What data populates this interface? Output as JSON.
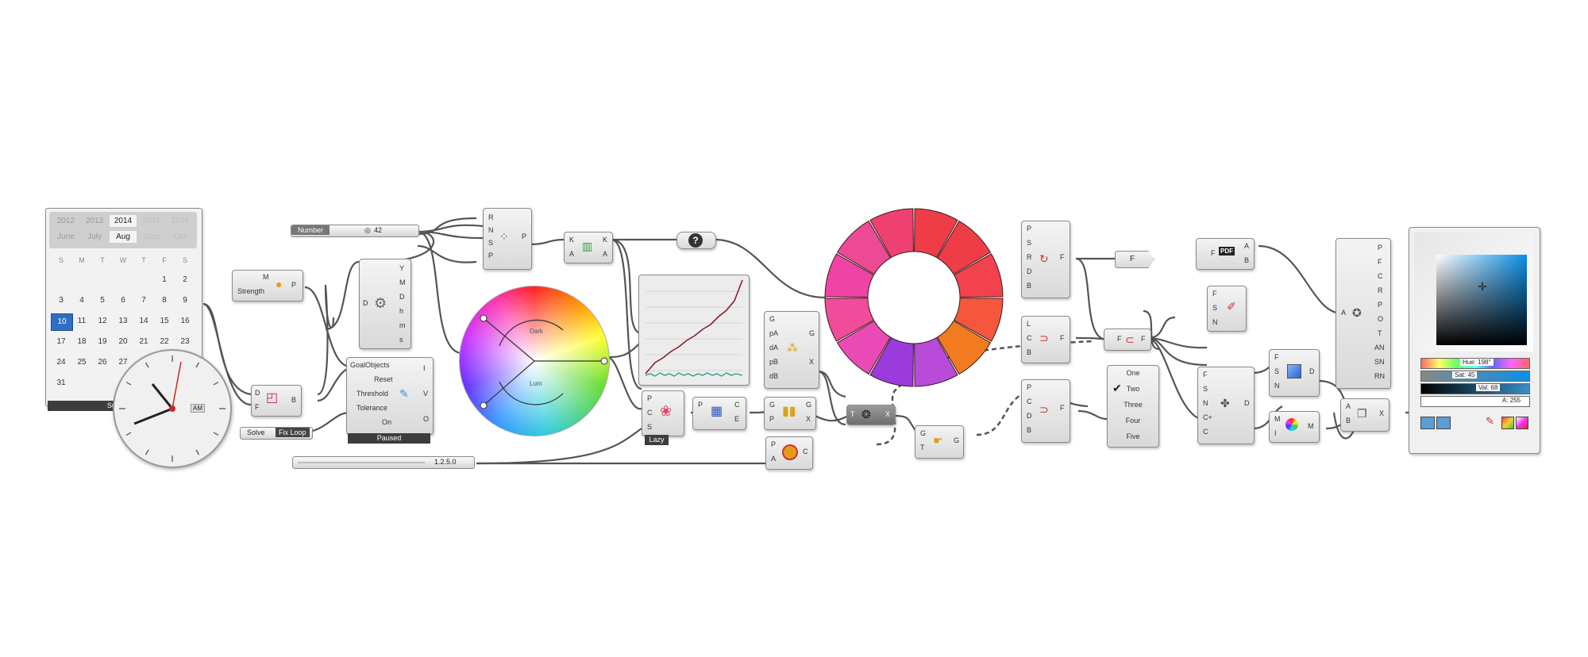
{
  "calendar": {
    "years": [
      "2012",
      "2013",
      "2014",
      "2015",
      "2016"
    ],
    "months": [
      "June",
      "July",
      "Aug",
      "Sept",
      "Oct"
    ],
    "weekdays": [
      "S",
      "M",
      "T",
      "W",
      "T",
      "F",
      "S"
    ],
    "rows": [
      [
        "",
        "",
        "",
        "",
        "",
        "1",
        "2"
      ],
      [
        "3",
        "4",
        "5",
        "6",
        "7",
        "8",
        "9"
      ],
      [
        "10",
        "11",
        "12",
        "13",
        "14",
        "15",
        "16"
      ],
      [
        "17",
        "18",
        "19",
        "20",
        "21",
        "22",
        "23"
      ],
      [
        "24",
        "25",
        "26",
        "27",
        "28",
        "29",
        "30"
      ],
      [
        "31",
        "",
        "",
        "",
        "",
        "",
        ""
      ]
    ],
    "selected_day": "10",
    "footer": "Sunday, A"
  },
  "clock": {
    "ampm": "AM"
  },
  "nodes": {
    "strength": {
      "in1": "M",
      "in2": "Strength",
      "out": "P"
    },
    "small_d": {
      "in1": "D",
      "in2": "F",
      "out": "B"
    },
    "deconstruct": {
      "in": "D",
      "outs": [
        "Y",
        "M",
        "D",
        "h",
        "m",
        "s"
      ]
    },
    "goal": {
      "title": "GoalObjects",
      "inputs": [
        "Reset",
        "Threshold",
        "Tolerance",
        "On"
      ],
      "outs": [
        "I",
        "V",
        "O"
      ],
      "status": "Paused"
    },
    "solve": {
      "label": "Solve",
      "value": "Fix Loop"
    },
    "number": {
      "label": "Number",
      "value": "42"
    },
    "rnsp": {
      "ins": [
        "R",
        "N",
        "S",
        "P"
      ],
      "out": "P"
    },
    "ka": {
      "in1": "K",
      "in2": "A",
      "out1": "K",
      "out2": "A"
    },
    "question": {
      "glyph": "?"
    },
    "wheel": {
      "label1": "Dark",
      "label2": "Lum"
    },
    "cgs": {
      "ins": [
        "P",
        "C",
        "S"
      ],
      "status": "Lazy"
    },
    "gpa": {
      "ins": [
        "G",
        "pA",
        "dA",
        "pB",
        "dB"
      ],
      "outs": [
        "G",
        "X"
      ]
    },
    "pce": {
      "in": "P",
      "outs": [
        "C",
        "E"
      ]
    },
    "gpgx": {
      "ins": [
        "G",
        "P"
      ],
      "outs": [
        "G",
        "X"
      ]
    },
    "pac": {
      "ins": [
        "P",
        "A"
      ],
      "out": "C"
    },
    "tx": {
      "in": "T",
      "out": "X"
    },
    "gtg": {
      "ins": [
        "G",
        "T"
      ],
      "out": "G"
    },
    "slider": {
      "value": "1.2.5.0"
    },
    "psrdb": {
      "ins": [
        "P",
        "S",
        "R",
        "D",
        "B"
      ],
      "out": "F"
    },
    "lcb": {
      "ins": [
        "L",
        "C",
        "B"
      ],
      "out": "F"
    },
    "pcdb": {
      "ins": [
        "P",
        "C",
        "D",
        "B"
      ],
      "out": "F"
    },
    "f_param": {
      "label": "F"
    },
    "ff": {
      "in": "F",
      "out": "F"
    },
    "pdf": {
      "in": "F",
      "label": "PDF",
      "outs": [
        "A",
        "B"
      ]
    },
    "fsn": {
      "ins": [
        "F",
        "S",
        "N"
      ]
    },
    "list": {
      "items": [
        "One",
        "Two",
        "Three",
        "Four",
        "Five"
      ],
      "checked": "Two"
    },
    "fsncc": {
      "ins": [
        "F",
        "S",
        "N",
        "C+",
        "C"
      ],
      "out": "D"
    },
    "sn": {
      "ins": [
        "F",
        "S",
        "N"
      ],
      "out": "D"
    },
    "mi": {
      "ins": [
        "M",
        "I"
      ],
      "out": "M"
    },
    "ab": {
      "ins": [
        "A",
        "B"
      ],
      "out": "X"
    },
    "pfcr": {
      "in": "A",
      "outs": [
        "P",
        "F",
        "C",
        "R",
        "P",
        "O",
        "T",
        "AN",
        "SN",
        "RN"
      ]
    },
    "picker": {
      "hue": "Hue: 198°",
      "sat": "Sat: 45",
      "val": "Val: 68",
      "alpha": "A: 255"
    }
  },
  "colors": {
    "ring": [
      "#ef3d47",
      "#ef3d47",
      "#f2424d",
      "#f4573e",
      "#f27b22",
      "#b84bd9",
      "#9c3bdb",
      "#e94ab5",
      "#f14c9b",
      "#ef44a5",
      "#ec4a95",
      "#ee4171"
    ]
  }
}
